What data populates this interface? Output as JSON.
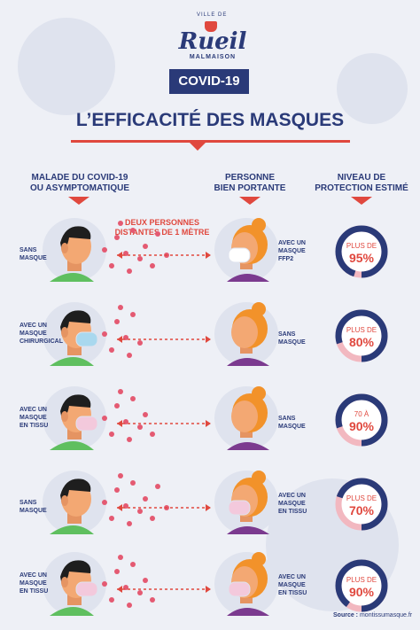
{
  "logo": {
    "ville": "VILLE DE",
    "name": "Rueil",
    "sub": "MALMAISON"
  },
  "badge": "COVID-19",
  "title": "L’EFFICACITÉ DES MASQUES",
  "columns": {
    "left": [
      "MALADE DU COVID-19",
      "OU ASYMPTOMATIQUE"
    ],
    "middle": [
      "PERSONNE",
      "BIEN PORTANTE"
    ],
    "right": [
      "NIVEAU DE",
      "PROTECTION ESTIMÉ"
    ]
  },
  "distance": [
    "DEUX PERSONNES",
    "DISTANTES DE 1 MÈTRE"
  ],
  "rows": [
    {
      "left": [
        "SANS",
        "MASQUE"
      ],
      "right": [
        "AVEC UN",
        "MASQUE",
        "FFP2"
      ],
      "pct_top": "PLUS DE",
      "pct": "95%",
      "fill": 0.95
    },
    {
      "left": [
        "AVEC UN",
        "MASQUE",
        "CHIRURGICAL"
      ],
      "right": [
        "SANS",
        "MASQUE"
      ],
      "pct_top": "PLUS DE",
      "pct": "80%",
      "fill": 0.8
    },
    {
      "left": [
        "AVEC UN",
        "MASQUE",
        "EN TISSU"
      ],
      "right": [
        "SANS",
        "MASQUE"
      ],
      "pct_top": "70 À",
      "pct": "90%",
      "fill": 0.8
    },
    {
      "left": [
        "SANS",
        "MASQUE"
      ],
      "right": [
        "AVEC UN",
        "MASQUE",
        "EN TISSU"
      ],
      "pct_top": "PLUS DE",
      "pct": "70%",
      "fill": 0.7
    },
    {
      "left": [
        "AVEC UN",
        "MASQUE",
        "EN TISSU"
      ],
      "right": [
        "AVEC UN",
        "MASQUE",
        "EN TISSU"
      ],
      "pct_top": "PLUS DE",
      "pct": "90%",
      "fill": 0.9
    }
  ],
  "source": {
    "label": "Source :",
    "value": "montissumasque.fr"
  },
  "colors": {
    "navy": "#2a3a78",
    "red": "#e0483e",
    "skin": "#f3a873",
    "dark": "#1e1e1e",
    "shirt": "#5fbf5f",
    "hair_orange": "#f2922a",
    "woman_top": "#7b3a8f"
  }
}
